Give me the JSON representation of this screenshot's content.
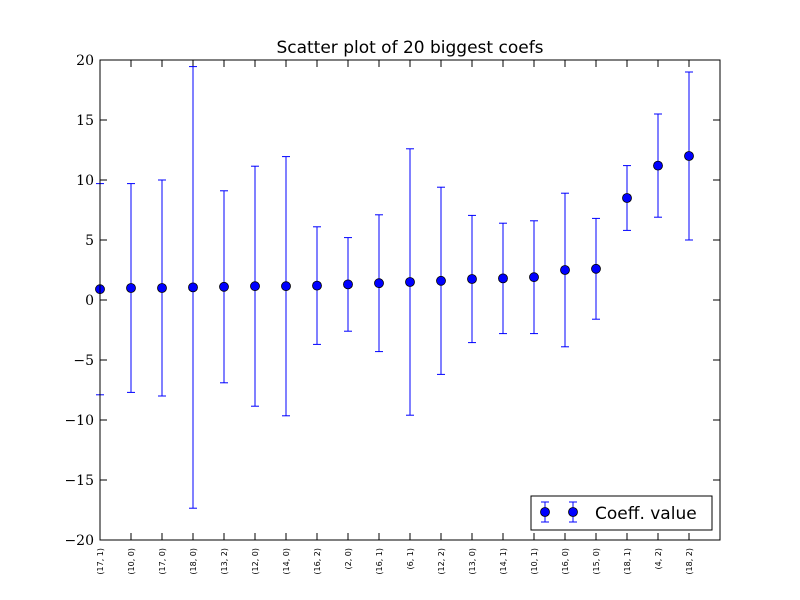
{
  "chart_data": {
    "type": "scatter",
    "title": "Scatter plot of 20 biggest coefs",
    "xlabel": "",
    "ylabel": "",
    "ylim": [
      -20,
      20
    ],
    "yticks": [
      -20,
      -15,
      -10,
      -5,
      0,
      5,
      10,
      15,
      20
    ],
    "ytick_labels": [
      "−20",
      "−15",
      "−10",
      "−5",
      "0",
      "5",
      "10",
      "15",
      "20"
    ],
    "categories": [
      "(17, 1)",
      "(10, 0)",
      "(17, 0)",
      "(18, 0)",
      "(13, 2)",
      "(12, 0)",
      "(14, 0)",
      "(16, 2)",
      "(2, 0)",
      "(16, 1)",
      "(6, 1)",
      "(12, 2)",
      "(13, 0)",
      "(14, 1)",
      "(10, 1)",
      "(16, 0)",
      "(15, 0)",
      "(18, 1)",
      "(4, 2)",
      "(18, 2)"
    ],
    "series": [
      {
        "name": "Coeff. value",
        "color": "#0000ff",
        "values": [
          0.9,
          1.0,
          1.0,
          1.05,
          1.1,
          1.15,
          1.15,
          1.2,
          1.3,
          1.4,
          1.5,
          1.6,
          1.75,
          1.8,
          1.9,
          2.5,
          2.6,
          8.5,
          11.2,
          12.0
        ],
        "errors": [
          8.8,
          8.7,
          9.0,
          18.4,
          8.0,
          10.0,
          10.8,
          4.9,
          3.9,
          5.7,
          11.1,
          7.8,
          5.3,
          4.6,
          4.7,
          6.4,
          4.2,
          2.7,
          4.3,
          7.0
        ]
      }
    ],
    "grid": false,
    "legend": {
      "position": "bottom-right",
      "entries": [
        "Coeff. value"
      ]
    }
  }
}
